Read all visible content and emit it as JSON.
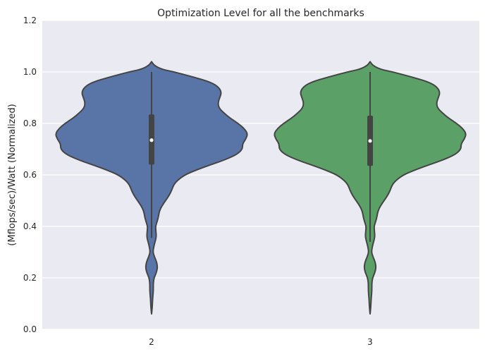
{
  "chart_data": {
    "type": "violin",
    "title": "Optimization Level for all the benchmarks",
    "xlabel": "",
    "ylabel": "(Mflops/sec)/Watt (Normalized)",
    "ylim": [
      0.0,
      1.2
    ],
    "yticks": [
      "0.0",
      "0.2",
      "0.4",
      "0.6",
      "0.8",
      "1.0",
      "1.2"
    ],
    "grid": true,
    "legend": "none",
    "categories": [
      "2",
      "3"
    ],
    "colors": [
      "#5975a8",
      "#5aa067"
    ],
    "series": [
      {
        "category": "2",
        "median": 0.735,
        "q1": 0.64,
        "q3": 0.835,
        "whisker_low": 0.355,
        "whisker_high": 1.0,
        "min": 0.06,
        "max": 1.04,
        "density": [
          [
            1.04,
            0.0
          ],
          [
            1.025,
            0.03
          ],
          [
            1.01,
            0.12
          ],
          [
            1.0,
            0.26
          ],
          [
            0.98,
            0.48
          ],
          [
            0.96,
            0.68
          ],
          [
            0.94,
            0.77
          ],
          [
            0.92,
            0.8
          ],
          [
            0.9,
            0.78
          ],
          [
            0.88,
            0.76
          ],
          [
            0.86,
            0.77
          ],
          [
            0.84,
            0.83
          ],
          [
            0.82,
            0.9
          ],
          [
            0.8,
            0.99
          ],
          [
            0.78,
            1.06
          ],
          [
            0.76,
            1.1
          ],
          [
            0.74,
            1.08
          ],
          [
            0.72,
            1.04
          ],
          [
            0.7,
            1.04
          ],
          [
            0.68,
            0.98
          ],
          [
            0.66,
            0.85
          ],
          [
            0.64,
            0.68
          ],
          [
            0.62,
            0.52
          ],
          [
            0.6,
            0.38
          ],
          [
            0.58,
            0.3
          ],
          [
            0.56,
            0.25
          ],
          [
            0.54,
            0.23
          ],
          [
            0.52,
            0.2
          ],
          [
            0.5,
            0.16
          ],
          [
            0.48,
            0.12
          ],
          [
            0.46,
            0.09
          ],
          [
            0.44,
            0.08
          ],
          [
            0.42,
            0.065
          ],
          [
            0.4,
            0.045
          ],
          [
            0.38,
            0.05
          ],
          [
            0.36,
            0.055
          ],
          [
            0.34,
            0.04
          ],
          [
            0.32,
            0.025
          ],
          [
            0.3,
            0.015
          ],
          [
            0.28,
            0.035
          ],
          [
            0.26,
            0.06
          ],
          [
            0.24,
            0.068
          ],
          [
            0.22,
            0.055
          ],
          [
            0.2,
            0.028
          ],
          [
            0.18,
            0.02
          ],
          [
            0.16,
            0.02
          ],
          [
            0.14,
            0.018
          ],
          [
            0.12,
            0.012
          ],
          [
            0.1,
            0.01
          ],
          [
            0.08,
            0.006
          ],
          [
            0.06,
            0.0
          ]
        ]
      },
      {
        "category": "3",
        "median": 0.732,
        "q1": 0.635,
        "q3": 0.83,
        "whisker_low": 0.34,
        "whisker_high": 1.0,
        "min": 0.06,
        "max": 1.04,
        "density": [
          [
            1.04,
            0.0
          ],
          [
            1.025,
            0.03
          ],
          [
            1.01,
            0.12
          ],
          [
            1.0,
            0.26
          ],
          [
            0.98,
            0.48
          ],
          [
            0.96,
            0.68
          ],
          [
            0.94,
            0.77
          ],
          [
            0.92,
            0.8
          ],
          [
            0.9,
            0.78
          ],
          [
            0.88,
            0.76
          ],
          [
            0.86,
            0.77
          ],
          [
            0.84,
            0.83
          ],
          [
            0.82,
            0.9
          ],
          [
            0.8,
            0.99
          ],
          [
            0.78,
            1.06
          ],
          [
            0.76,
            1.1
          ],
          [
            0.74,
            1.08
          ],
          [
            0.72,
            1.04
          ],
          [
            0.7,
            1.04
          ],
          [
            0.68,
            0.98
          ],
          [
            0.66,
            0.85
          ],
          [
            0.64,
            0.68
          ],
          [
            0.62,
            0.52
          ],
          [
            0.6,
            0.38
          ],
          [
            0.58,
            0.3
          ],
          [
            0.56,
            0.25
          ],
          [
            0.54,
            0.23
          ],
          [
            0.52,
            0.2
          ],
          [
            0.5,
            0.16
          ],
          [
            0.48,
            0.12
          ],
          [
            0.46,
            0.09
          ],
          [
            0.44,
            0.08
          ],
          [
            0.42,
            0.065
          ],
          [
            0.4,
            0.045
          ],
          [
            0.38,
            0.05
          ],
          [
            0.36,
            0.055
          ],
          [
            0.34,
            0.04
          ],
          [
            0.32,
            0.025
          ],
          [
            0.3,
            0.015
          ],
          [
            0.28,
            0.035
          ],
          [
            0.26,
            0.06
          ],
          [
            0.24,
            0.068
          ],
          [
            0.22,
            0.055
          ],
          [
            0.2,
            0.028
          ],
          [
            0.18,
            0.02
          ],
          [
            0.16,
            0.02
          ],
          [
            0.14,
            0.018
          ],
          [
            0.12,
            0.012
          ],
          [
            0.1,
            0.01
          ],
          [
            0.08,
            0.006
          ],
          [
            0.06,
            0.0
          ]
        ]
      }
    ]
  }
}
